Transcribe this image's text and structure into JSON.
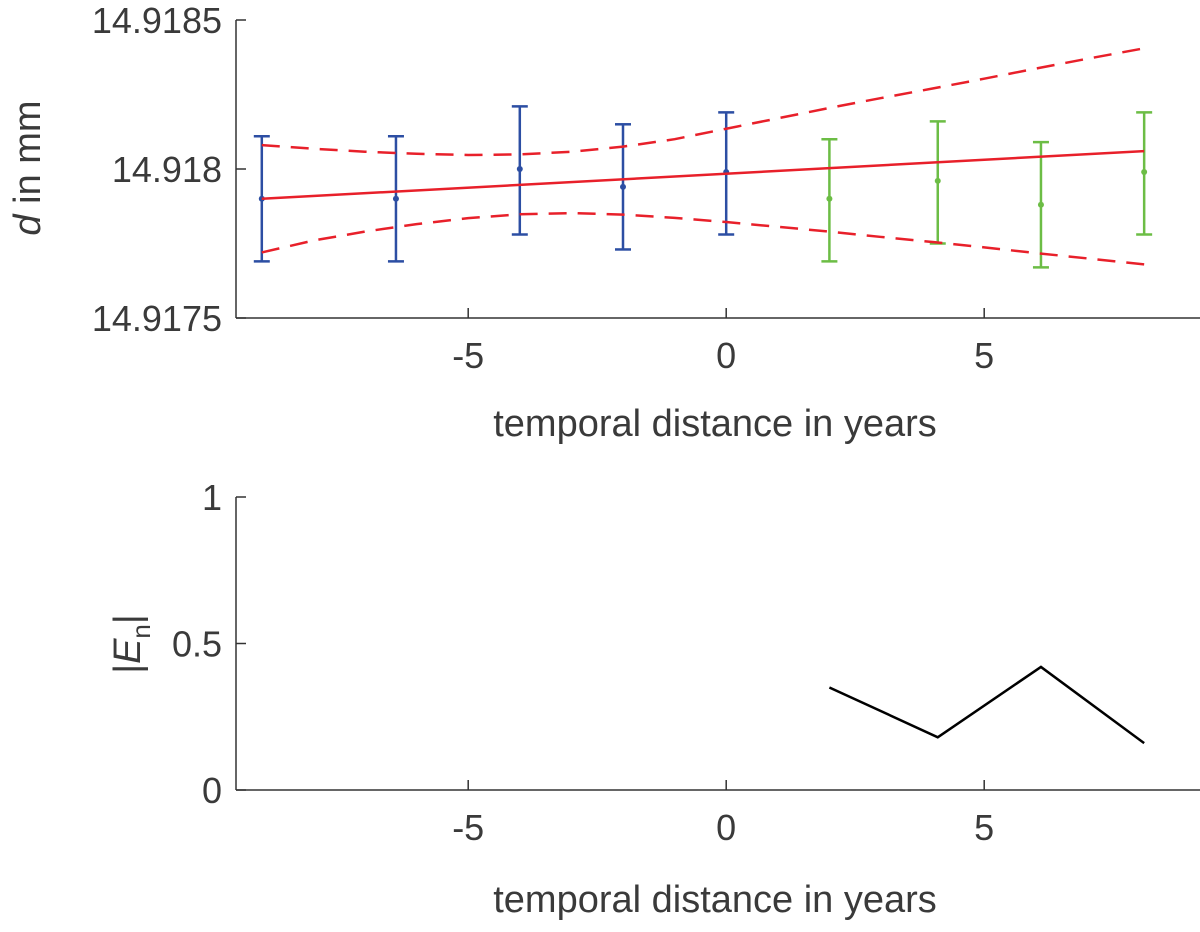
{
  "chart_data": [
    {
      "type": "scatter",
      "title": "",
      "xlabel": "temporal distance in years",
      "ylabel": {
        "symbol": "d",
        "rest": " in mm"
      },
      "xlim": [
        -9,
        8.1
      ],
      "ylim": [
        14.9175,
        14.9185
      ],
      "xticks": [
        -5,
        0,
        5
      ],
      "xtick_labels": [
        "-5",
        "0",
        "5"
      ],
      "yticks": [
        14.9175,
        14.918,
        14.9185
      ],
      "ytick_labels": [
        "14.9175",
        "14.918",
        "14.9185"
      ],
      "grid": false,
      "colors": {
        "fit": "#e8202a",
        "historical": "#2c4ea3",
        "new": "#6cbd45",
        "axis": "#333333"
      },
      "series": [
        {
          "color_key": "historical",
          "kind": "errorbar",
          "points": [
            {
              "x": -9.0,
              "y": 14.9179,
              "lo": 14.91769,
              "hi": 14.91811
            },
            {
              "x": -6.4,
              "y": 14.9179,
              "lo": 14.91769,
              "hi": 14.91811
            },
            {
              "x": -4.0,
              "y": 14.918,
              "lo": 14.91778,
              "hi": 14.91821
            },
            {
              "x": -2.0,
              "y": 14.91794,
              "lo": 14.91773,
              "hi": 14.91815
            },
            {
              "x": 0.0,
              "y": 14.91799,
              "lo": 14.91778,
              "hi": 14.91819
            }
          ]
        },
        {
          "color_key": "new",
          "kind": "errorbar",
          "points": [
            {
              "x": 2.0,
              "y": 14.9179,
              "lo": 14.91769,
              "hi": 14.9181
            },
            {
              "x": 4.1,
              "y": 14.91796,
              "lo": 14.91775,
              "hi": 14.91816
            },
            {
              "x": 6.1,
              "y": 14.91788,
              "lo": 14.91767,
              "hi": 14.91809
            },
            {
              "x": 8.1,
              "y": 14.91799,
              "lo": 14.91778,
              "hi": 14.91819
            }
          ]
        },
        {
          "color_key": "fit",
          "kind": "line",
          "x": [
            -9.0,
            8.1
          ],
          "y": [
            14.9179,
            14.91806
          ]
        },
        {
          "color_key": "fit",
          "kind": "dashed",
          "x": [
            -9.0,
            -8.0,
            -7.0,
            -6.0,
            -5.0,
            -4.0,
            -3.0,
            -2.0,
            -1.0,
            0.0,
            1.0,
            2.0,
            3.0,
            4.0,
            5.0,
            6.0,
            7.0,
            8.1
          ],
          "y": [
            14.91808,
            14.918068,
            14.918058,
            14.918051,
            14.918047,
            14.918049,
            14.918058,
            14.918075,
            14.9181,
            14.918135,
            14.91817,
            14.918205,
            14.918238,
            14.91827,
            14.918303,
            14.918337,
            14.91837,
            14.918405
          ]
        },
        {
          "color_key": "fit",
          "kind": "dashed",
          "x": [
            -9.0,
            -8.0,
            -7.0,
            -6.0,
            -5.0,
            -4.0,
            -3.0,
            -2.0,
            -1.0,
            0.0,
            1.0,
            2.0,
            3.0,
            4.0,
            5.0,
            6.0,
            7.0,
            8.1
          ],
          "y": [
            14.91772,
            14.91776,
            14.91779,
            14.917815,
            14.917835,
            14.917848,
            14.917852,
            14.917847,
            14.917836,
            14.917822,
            14.917806,
            14.91779,
            14.917772,
            14.917755,
            14.917737,
            14.917718,
            14.9177,
            14.91768
          ]
        }
      ]
    },
    {
      "type": "line",
      "title": "",
      "xlabel": "temporal distance in years",
      "ylabel": {
        "bar": "|",
        "symbol": "E",
        "sub": "n"
      },
      "xlim": [
        -9,
        8.1
      ],
      "ylim": [
        0,
        1
      ],
      "xticks": [
        -5,
        0,
        5
      ],
      "xtick_labels": [
        "-5",
        "0",
        "5"
      ],
      "yticks": [
        0,
        0.5,
        1
      ],
      "ytick_labels": [
        "0",
        "0.5",
        "1"
      ],
      "grid": false,
      "colors": {
        "line": "#000000",
        "axis": "#333333"
      },
      "series": [
        {
          "x": [
            2.0,
            4.1,
            6.1,
            8.1
          ],
          "y": [
            0.35,
            0.18,
            0.42,
            0.16
          ]
        }
      ]
    }
  ]
}
